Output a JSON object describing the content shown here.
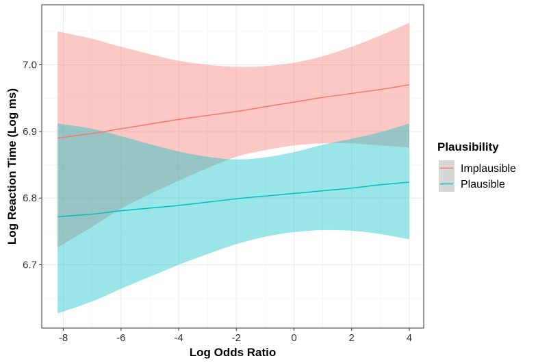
{
  "chart_data": {
    "type": "line",
    "title": "",
    "xlabel": "Log Odds Ratio",
    "ylabel": "Log Reaction Time (Log ms)",
    "xlim": [
      -8.75,
      4.5
    ],
    "ylim": [
      6.605,
      7.09
    ],
    "xticks": [
      -8,
      -6,
      -4,
      -2,
      0,
      2,
      4
    ],
    "xtick_labels": [
      "-8",
      "-6",
      "-4",
      "-2",
      "0",
      "2",
      "4"
    ],
    "yticks": [
      6.7,
      6.8,
      6.9,
      7.0
    ],
    "ytick_labels": [
      "6.7",
      "6.8",
      "6.9",
      "7.0"
    ],
    "grid": true,
    "legend": {
      "title": "Plausibility",
      "position": "right"
    },
    "series": [
      {
        "name": "Implausible",
        "color": "#F8766D",
        "fill_color": "#F8766D",
        "x": [
          -8.2,
          -7,
          -6,
          -5,
          -4,
          -3,
          -2,
          -1,
          0,
          1,
          2,
          3,
          4
        ],
        "y": [
          6.89,
          6.897,
          6.904,
          6.911,
          6.918,
          6.924,
          6.93,
          6.937,
          6.944,
          6.951,
          6.957,
          6.963,
          6.97
        ],
        "lower": [
          6.726,
          6.757,
          6.784,
          6.806,
          6.826,
          6.845,
          6.862,
          6.872,
          6.879,
          6.882,
          6.882,
          6.879,
          6.876
        ],
        "upper": [
          7.05,
          7.039,
          7.027,
          7.016,
          7.006,
          7.0,
          6.997,
          6.998,
          7.003,
          7.013,
          7.027,
          7.044,
          7.063
        ]
      },
      {
        "name": "Plausible",
        "color": "#00BFC4",
        "fill_color": "#00BFC4",
        "x": [
          -8.2,
          -7,
          -6,
          -5,
          -4,
          -3,
          -2,
          -1,
          0,
          1,
          2,
          3,
          4
        ],
        "y": [
          6.772,
          6.776,
          6.781,
          6.785,
          6.789,
          6.794,
          6.799,
          6.803,
          6.807,
          6.811,
          6.815,
          6.82,
          6.824
        ],
        "lower": [
          6.627,
          6.645,
          6.664,
          6.682,
          6.7,
          6.716,
          6.731,
          6.742,
          6.749,
          6.752,
          6.751,
          6.746,
          6.738
        ],
        "upper": [
          6.912,
          6.904,
          6.893,
          6.881,
          6.87,
          6.862,
          6.858,
          6.861,
          6.869,
          6.88,
          6.889,
          6.899,
          6.912
        ]
      }
    ]
  }
}
